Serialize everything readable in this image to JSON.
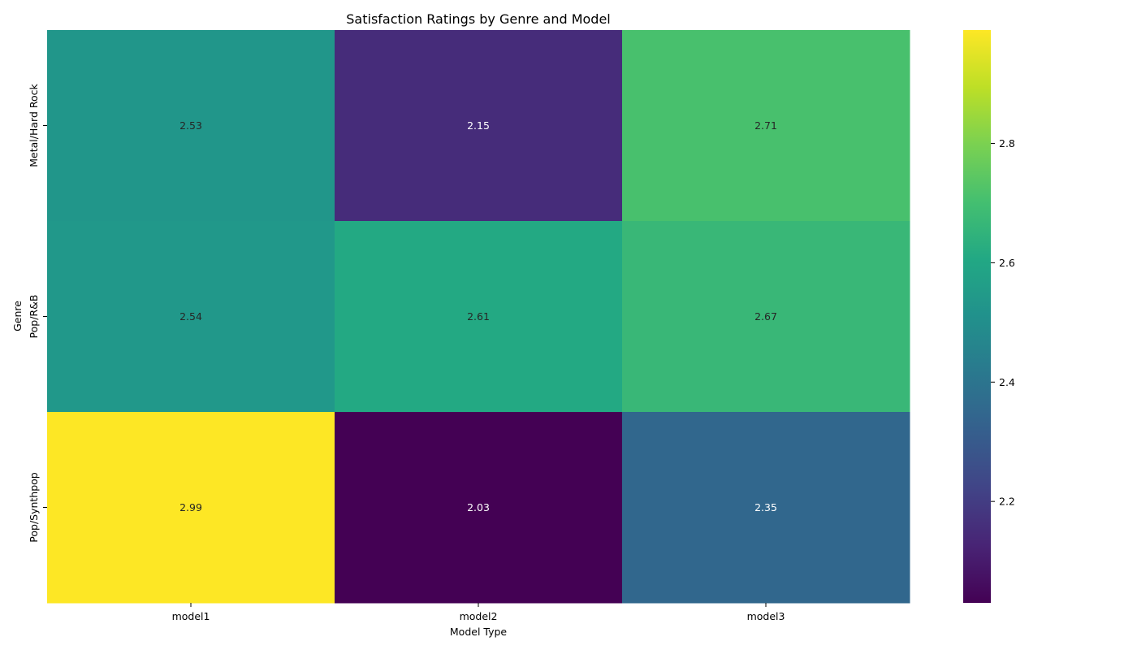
{
  "chart_data": {
    "type": "heatmap",
    "title": "Satisfaction Ratings by Genre and Model",
    "xlabel": "Model Type",
    "ylabel": "Genre",
    "x_categories": [
      "model1",
      "model2",
      "model3"
    ],
    "y_categories": [
      "Metal/Hard Rock",
      "Pop/R&B",
      "Pop/Synthpop"
    ],
    "values": [
      [
        2.53,
        2.15,
        2.71
      ],
      [
        2.54,
        2.61,
        2.67
      ],
      [
        2.99,
        2.03,
        2.35
      ]
    ],
    "value_labels": [
      [
        "2.53",
        "2.15",
        "2.71"
      ],
      [
        "2.54",
        "2.61",
        "2.67"
      ],
      [
        "2.99",
        "2.03",
        "2.35"
      ]
    ],
    "colormap": "viridis",
    "vmin": 2.03,
    "vmax": 2.99,
    "colorbar_ticks": [
      2.2,
      2.4,
      2.6,
      2.8
    ],
    "colorbar_tick_labels": [
      "2.2",
      "2.4",
      "2.6",
      "2.8"
    ],
    "grid": false
  }
}
